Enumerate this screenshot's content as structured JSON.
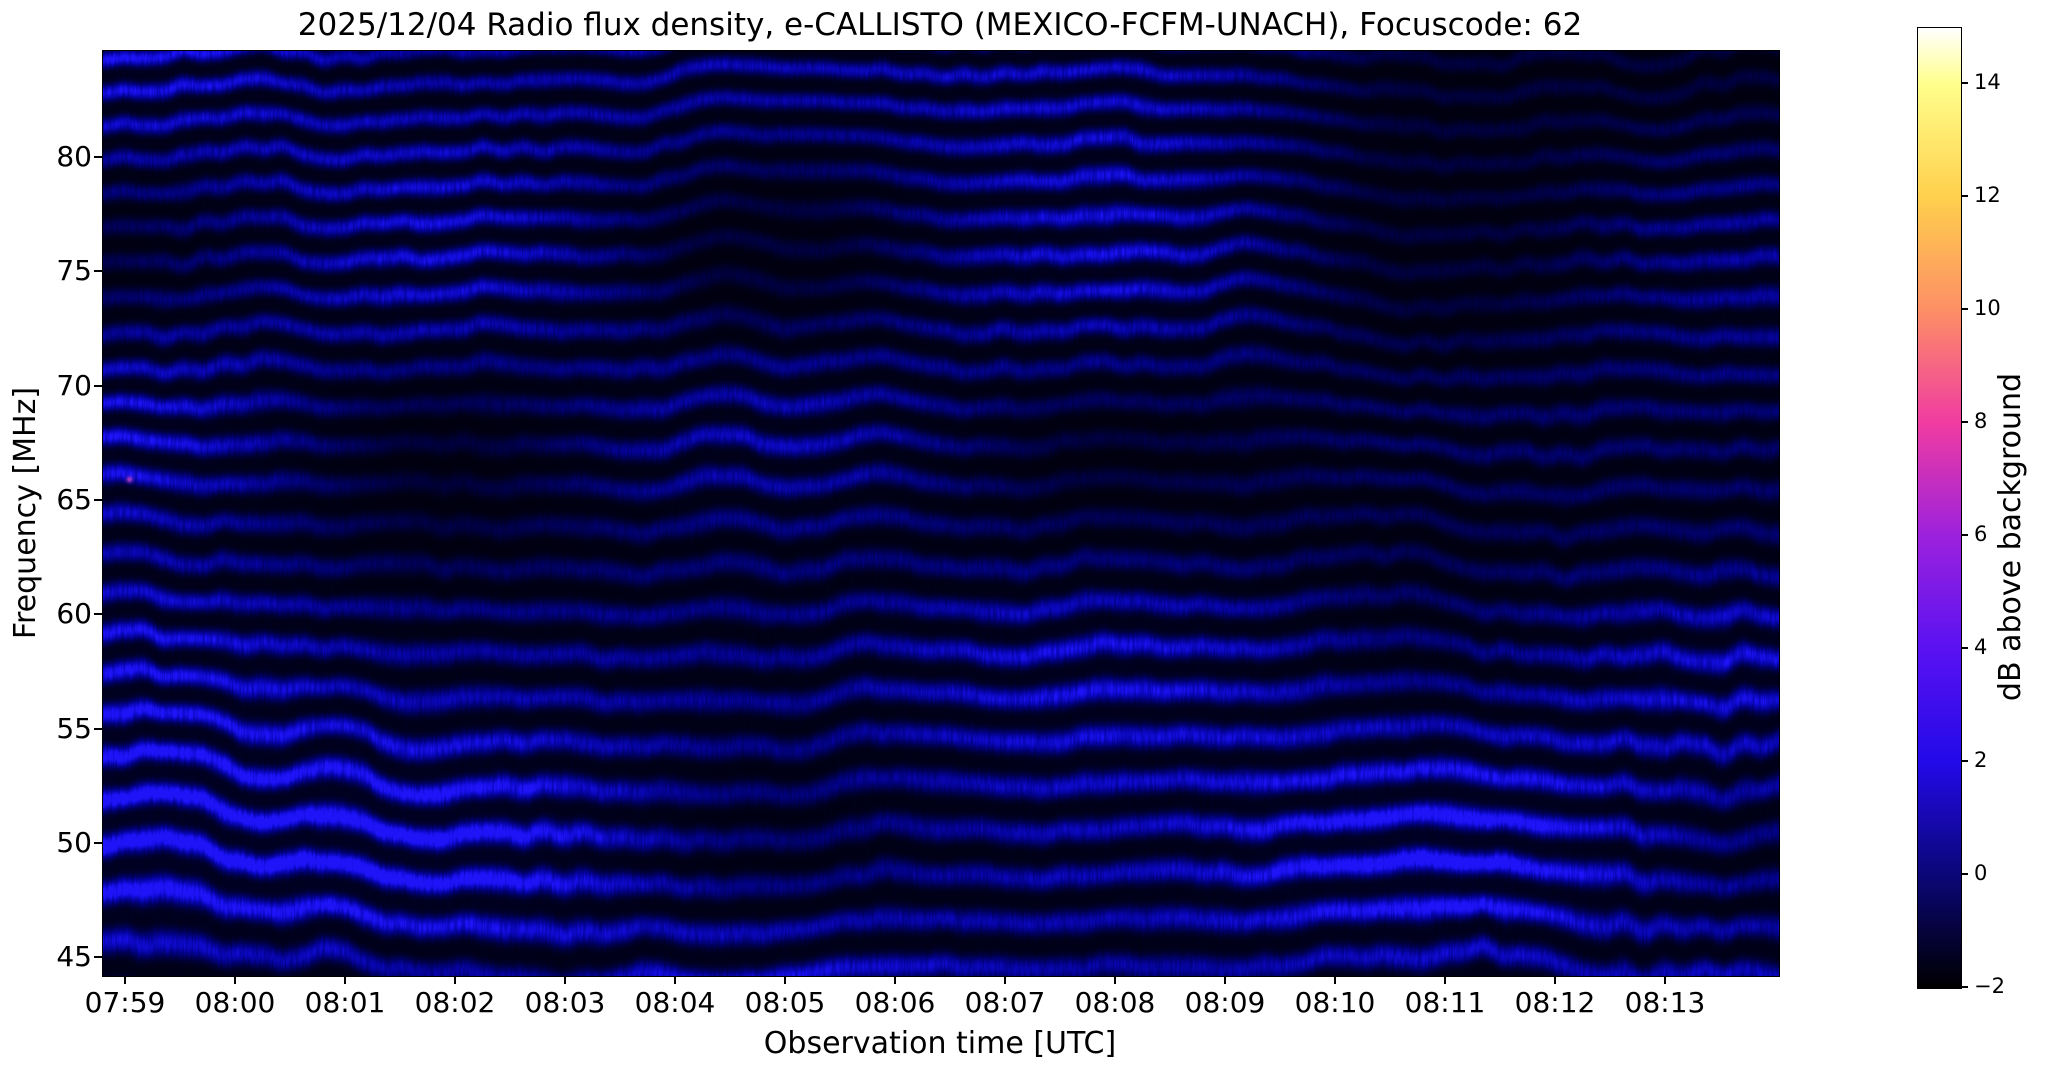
{
  "title": "2025/12/04  Radio flux density, e-CALLISTO (MEXICO-FCFM-UNACH), Focuscode: 62",
  "x_axis": {
    "label": "Observation time [UTC]",
    "ticks": [
      "07:59",
      "08:00",
      "08:01",
      "08:02",
      "08:03",
      "08:04",
      "08:05",
      "08:06",
      "08:07",
      "08:08",
      "08:09",
      "08:10",
      "08:11",
      "08:12",
      "08:13"
    ]
  },
  "y_axis": {
    "label": "Frequency [MHz]",
    "ticks": [
      "80",
      "75",
      "70",
      "65",
      "60",
      "55",
      "50",
      "45"
    ],
    "tick_values": [
      80,
      75,
      70,
      65,
      60,
      55,
      50,
      45
    ]
  },
  "colorbar": {
    "label": "dB above background",
    "tick_labels": [
      "14",
      "12",
      "10",
      "8",
      "6",
      "4",
      "2",
      "0",
      "−2"
    ],
    "tick_values": [
      14,
      12,
      10,
      8,
      6,
      4,
      2,
      0,
      -2
    ],
    "min": -2,
    "max": 15,
    "gradient_stops": [
      {
        "v": 15,
        "c": "#ffffff"
      },
      {
        "v": 14,
        "c": "#ffff8c"
      },
      {
        "v": 12,
        "c": "#ffd04d"
      },
      {
        "v": 10,
        "c": "#fd8f66"
      },
      {
        "v": 8,
        "c": "#f03ca2"
      },
      {
        "v": 6,
        "c": "#9c22dd"
      },
      {
        "v": 4,
        "c": "#5a12f2"
      },
      {
        "v": 2,
        "c": "#230ae8"
      },
      {
        "v": 0,
        "c": "#0b0778"
      },
      {
        "v": -2,
        "c": "#000000"
      }
    ]
  },
  "spectrogram_colors": {
    "band_bright": "#1e14f7",
    "background_dark": "#000014",
    "point_feature": "#c846c8"
  },
  "chart_data": {
    "type": "heatmap",
    "subtype": "radio-spectrogram",
    "title": "2025/12/04  Radio flux density, e-CALLISTO (MEXICO-FCFM-UNACH), Focuscode: 62",
    "xlabel": "Observation time [UTC]",
    "ylabel": "Frequency [MHz]",
    "x_ticks": [
      "07:59",
      "08:00",
      "08:01",
      "08:02",
      "08:03",
      "08:04",
      "08:05",
      "08:06",
      "08:07",
      "08:08",
      "08:09",
      "08:10",
      "08:11",
      "08:12",
      "08:13"
    ],
    "xlim": [
      "07:58:48",
      "08:14:00"
    ],
    "ylim": [
      44.2,
      84.8
    ],
    "value_axis": {
      "label": "dB above background",
      "range": [
        -2,
        15
      ]
    },
    "colormap": "gnuplot2-like: black, dark blue, blue, violet, magenta, salmon, orange, yellow, white",
    "content_summary": "Quiet-sun spectrogram dominated by horizontal wavy interference fringes (standing-wave ripple) over 45-85 MHz; fringe vertical spacing about 1.5-1.7 MHz; fringe intensity mostly 0 to 3 dB (dark blue to bright blue); troughs near -2 to 0 dB (black); fringes wobble in time with ~20 px zigzag excursions, stronger zigzags near 07:59-08:02 and 08:11-08:13.5; dimmer smoother zone around 61-65 MHz; higher-contrast fringes below 55 MHz; no solar radio burst present",
    "fringe_spacing_mhz": 1.6,
    "notable_features": [
      "faint magenta point at ~07:59:02, ~66 MHz (~8 dB)",
      "fine vertical column noise texture throughout",
      "no burst signatures; values stay in the blue (0-3 dB) part of the colour scale"
    ]
  }
}
